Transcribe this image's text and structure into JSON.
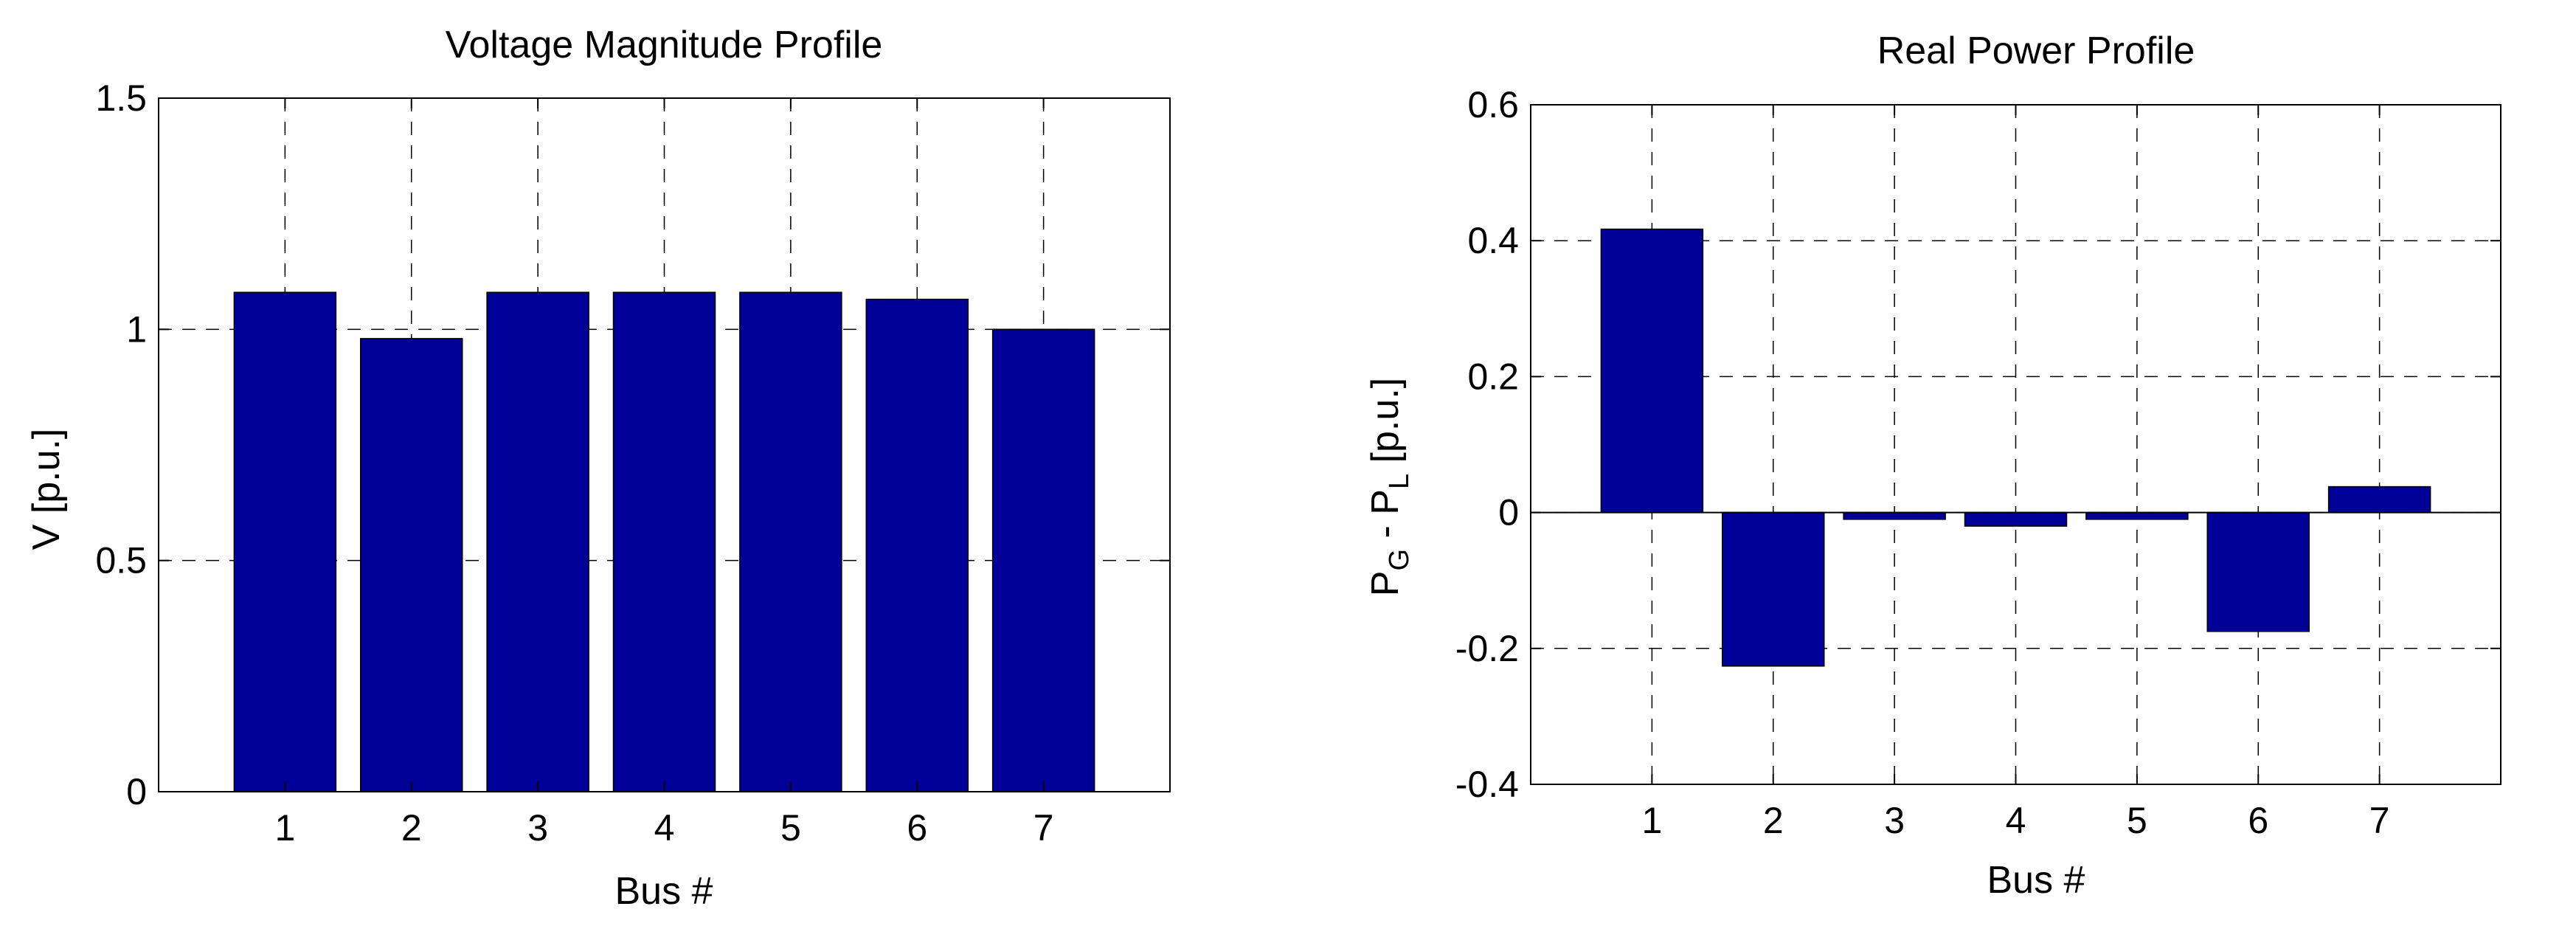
{
  "colors": {
    "bar": "#000099",
    "axis": "#000000",
    "grid": "#000000",
    "background": "#ffffff"
  },
  "chart_data": [
    {
      "type": "bar",
      "title": "Voltage Magnitude Profile",
      "xlabel": "Bus #",
      "ylabel": "V [p.u.]",
      "categories": [
        "1",
        "2",
        "3",
        "4",
        "5",
        "6",
        "7"
      ],
      "values": [
        1.08,
        0.98,
        1.08,
        1.08,
        1.08,
        1.065,
        1.0
      ],
      "ylim": [
        0,
        1.5
      ],
      "yticks": [
        "0",
        "0.5",
        "1",
        "1.5"
      ],
      "yticks_values": [
        0,
        0.5,
        1,
        1.5
      ],
      "grid": true
    },
    {
      "type": "bar",
      "title": "Real Power Profile",
      "xlabel": "Bus #",
      "ylabel": {
        "p1": "P",
        "sub1": "G",
        "mid": " - P",
        "sub2": "L",
        "tail": " [p.u.]"
      },
      "categories": [
        "1",
        "2",
        "3",
        "4",
        "5",
        "6",
        "7"
      ],
      "values": [
        0.417,
        -0.226,
        -0.01,
        -0.02,
        -0.01,
        -0.175,
        0.038
      ],
      "ylim": [
        -0.4,
        0.6
      ],
      "yticks": [
        "-0.4",
        "-0.2",
        "0",
        "0.2",
        "0.4",
        "0.6"
      ],
      "yticks_values": [
        -0.4,
        -0.2,
        0,
        0.2,
        0.4,
        0.6
      ],
      "grid": true
    }
  ]
}
